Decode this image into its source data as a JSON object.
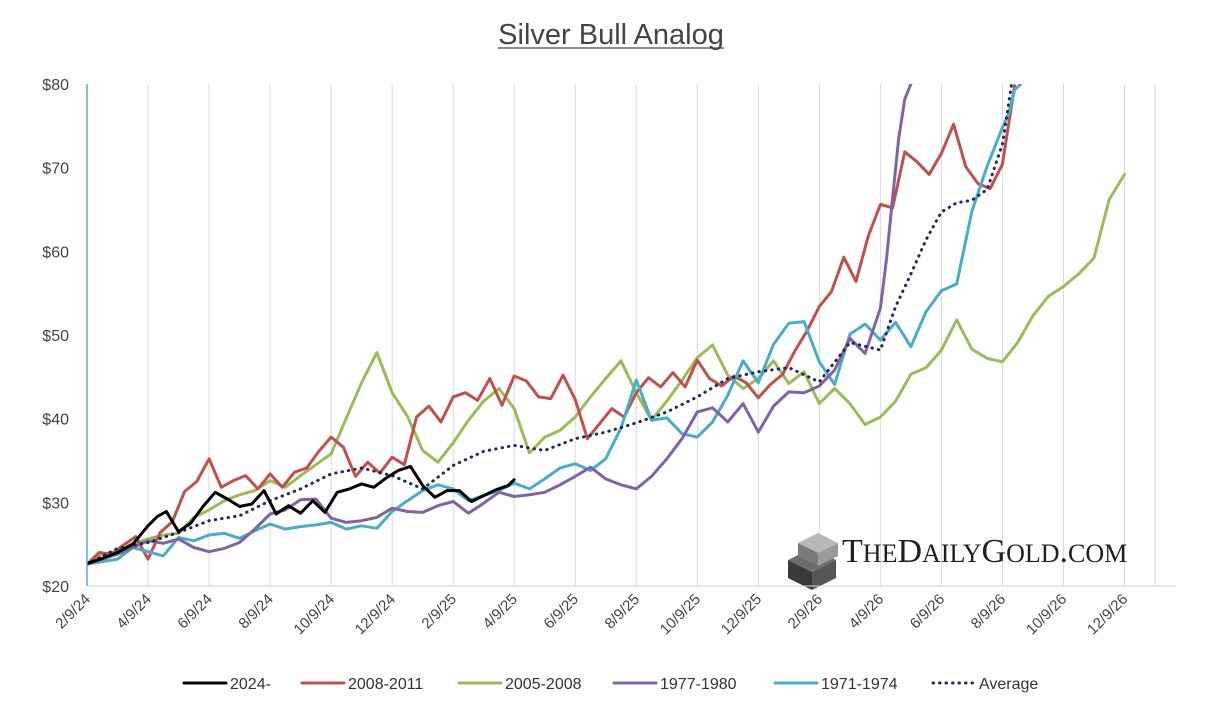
{
  "chart_data": {
    "type": "line",
    "title": "Silver Bull Analog",
    "xlabel": "",
    "ylabel": "",
    "y_ticks": [
      "$20",
      "$30",
      "$40",
      "$50",
      "$60",
      "$70",
      "$80"
    ],
    "y_tick_values": [
      20,
      30,
      40,
      50,
      60,
      70,
      80
    ],
    "ylim": [
      20,
      80
    ],
    "x_tick_labels": [
      "2/9/24",
      "4/9/24",
      "6/9/24",
      "8/9/24",
      "10/9/24",
      "12/9/24",
      "2/9/25",
      "4/9/25",
      "6/9/25",
      "8/9/25",
      "10/9/25",
      "12/9/25",
      "2/9/26",
      "4/9/26",
      "6/9/26",
      "8/9/26",
      "10/9/26",
      "12/9/26"
    ],
    "x_unit": "months since 2/9/24",
    "xlim": [
      0,
      35
    ],
    "grid": "vertical",
    "legend_position": "bottom",
    "watermark": "THEDAILYGOLD.COM",
    "series": [
      {
        "name": "2024-",
        "color": "#000000",
        "style": "solid",
        "x": [
          0,
          0.5,
          1,
          1.5,
          2,
          2.3,
          2.6,
          3,
          3.4,
          3.8,
          4.2,
          4.6,
          5,
          5.4,
          5.8,
          6.2,
          6.6,
          7,
          7.4,
          7.8,
          8.2,
          8.6,
          9,
          9.4,
          9.8,
          10.2,
          10.6,
          11,
          11.4,
          11.8,
          12.2,
          12.6,
          13,
          13.4,
          13.8,
          14
        ],
        "y": [
          22.7,
          23.3,
          24,
          25,
          27.2,
          28.3,
          28.9,
          26.5,
          27.5,
          29.5,
          31.2,
          30.4,
          29.5,
          29.8,
          31.4,
          28.6,
          29.6,
          28.7,
          30.2,
          28.8,
          31.2,
          31.6,
          32.2,
          31.8,
          32.9,
          33.8,
          34.3,
          32,
          30.6,
          31.4,
          31.4,
          30.1,
          30.8,
          31.5,
          32,
          32.7
        ]
      },
      {
        "name": "2008-2011",
        "color": "#c0504d",
        "style": "solid",
        "x": [
          0,
          0.4,
          0.8,
          1.2,
          1.6,
          2,
          2.4,
          2.8,
          3.2,
          3.6,
          4,
          4.4,
          4.8,
          5.2,
          5.6,
          6,
          6.4,
          6.8,
          7.2,
          7.6,
          8,
          8.4,
          8.8,
          9.2,
          9.6,
          10,
          10.4,
          10.8,
          11.2,
          11.6,
          12,
          12.4,
          12.8,
          13.2,
          13.6,
          14,
          14.4,
          14.8,
          15.2,
          15.6,
          16,
          16.4,
          16.8,
          17.2,
          17.6,
          18,
          18.4,
          18.8,
          19.2,
          19.6,
          20,
          20.4,
          20.8,
          21.2,
          21.6,
          22,
          22.4,
          22.8,
          23.2,
          23.6,
          24,
          24.4,
          24.8,
          25.2,
          25.6,
          26,
          26.4,
          26.8,
          27.2,
          27.6,
          28,
          28.4,
          28.8,
          29.2,
          29.6,
          30,
          30.4
        ],
        "y": [
          22.6,
          24,
          23.8,
          24.9,
          25.9,
          23.2,
          26.4,
          27.7,
          31.3,
          32.5,
          35.2,
          31.8,
          32.6,
          33.2,
          31.6,
          33.4,
          31.8,
          33.6,
          34.1,
          36.1,
          37.8,
          36.6,
          33.1,
          34.8,
          33.5,
          35.4,
          34.5,
          40.2,
          41.5,
          39.6,
          42.6,
          43.1,
          42.2,
          44.8,
          41.6,
          45.1,
          44.5,
          42.6,
          42.4,
          45.2,
          42.3,
          37.6,
          39.4,
          41.2,
          40.2,
          43.1,
          44.9,
          43.8,
          45.5,
          43.8,
          47,
          44.8,
          43.9,
          45.1,
          44.3,
          42.5,
          44.1,
          45.3,
          48.1,
          50.5,
          53.4,
          55.2,
          59.3,
          56.4,
          61.8,
          65.6,
          65.2,
          71.9,
          70.7,
          69.2,
          71.7,
          75.2,
          70.1,
          68.1,
          67.5,
          70.4,
          79.8
        ]
      },
      {
        "name": "2005-2008",
        "color": "#9bbb59",
        "style": "solid",
        "x": [
          0,
          0.5,
          1,
          1.5,
          2,
          2.5,
          3,
          3.5,
          4,
          4.5,
          5,
          5.5,
          6,
          6.5,
          7,
          7.5,
          8,
          8.5,
          9,
          9.5,
          10,
          10.5,
          11,
          11.5,
          12,
          12.5,
          13,
          13.5,
          14,
          14.5,
          15,
          15.5,
          16,
          16.5,
          17,
          17.5,
          18,
          18.5,
          19,
          19.5,
          20,
          20.5,
          21,
          21.5,
          22,
          22.5,
          23,
          23.5,
          24,
          24.5,
          25,
          25.5,
          26,
          26.5,
          27,
          27.5,
          28,
          28.5,
          29,
          29.5,
          30,
          30.5,
          31,
          31.5,
          32,
          32.5,
          33,
          33.5,
          34
        ],
        "y": [
          22.6,
          23.8,
          24.1,
          25.1,
          25.6,
          26.1,
          26.3,
          28.2,
          29.1,
          30.2,
          30.9,
          31.4,
          32.6,
          31.8,
          33.2,
          34.5,
          35.8,
          40.1,
          44.3,
          47.9,
          43.1,
          40.3,
          36.2,
          34.8,
          37.1,
          39.8,
          42.1,
          43.6,
          41.2,
          35.9,
          37.8,
          38.6,
          40.2,
          42.6,
          44.8,
          46.9,
          43.1,
          39.8,
          42.1,
          44.6,
          47.3,
          48.8,
          45.2,
          43.6,
          44.8,
          46.9,
          44.2,
          45.6,
          41.8,
          43.6,
          41.8,
          39.3,
          40.2,
          42.1,
          45.3,
          46.1,
          48.2,
          51.8,
          48.3,
          47.2,
          46.8,
          49.1,
          52.3,
          54.6,
          55.8,
          57.3,
          59.2,
          66.2,
          69.2
        ]
      },
      {
        "name": "1977-1980",
        "color": "#8064a2",
        "style": "solid",
        "x": [
          0,
          0.5,
          1,
          1.5,
          2,
          2.5,
          3,
          3.5,
          4,
          4.5,
          5,
          5.5,
          6,
          6.5,
          7,
          7.5,
          8,
          8.5,
          9,
          9.5,
          10,
          10.5,
          11,
          11.5,
          12,
          12.5,
          13,
          13.5,
          14,
          14.5,
          15,
          15.5,
          16,
          16.5,
          17,
          17.5,
          18,
          18.5,
          19,
          19.5,
          20,
          20.5,
          21,
          21.5,
          22,
          22.5,
          23,
          23.5,
          24,
          24.5,
          25,
          25.5,
          26,
          26.2,
          26.4,
          26.6,
          26.8,
          27
        ],
        "y": [
          22.6,
          23.2,
          23.8,
          24.6,
          25.4,
          25.1,
          25.6,
          24.6,
          24.1,
          24.5,
          25.2,
          26.8,
          28.6,
          29.1,
          30.3,
          30.4,
          28.1,
          27.6,
          27.8,
          28.2,
          29.3,
          28.9,
          28.8,
          29.6,
          30.1,
          28.7,
          29.9,
          31.2,
          30.7,
          30.9,
          31.2,
          32.1,
          33.1,
          34.2,
          32.8,
          32.1,
          31.6,
          33.1,
          35.2,
          37.6,
          40.8,
          41.3,
          39.6,
          41.8,
          38.4,
          41.5,
          43.2,
          43.1,
          43.9,
          45.8,
          49.6,
          47.8,
          53.2,
          59.1,
          66.4,
          73.5,
          78.2,
          80
        ]
      },
      {
        "name": "1971-1974",
        "color": "#4bacc6",
        "style": "solid",
        "x": [
          0,
          0.5,
          1,
          1.5,
          2,
          2.5,
          3,
          3.5,
          4,
          4.5,
          5,
          5.5,
          6,
          6.5,
          7,
          7.5,
          8,
          8.5,
          9,
          9.5,
          10,
          10.5,
          11,
          11.5,
          12,
          12.5,
          13,
          13.5,
          14,
          14.5,
          15,
          15.5,
          16,
          16.5,
          17,
          17.5,
          18,
          18.5,
          19,
          19.5,
          20,
          20.5,
          21,
          21.5,
          22,
          22.5,
          23,
          23.5,
          24,
          24.5,
          25,
          25.5,
          26,
          26.5,
          27,
          27.5,
          28,
          28.5,
          29,
          29.5,
          30,
          30.2,
          30.4,
          30.6
        ],
        "y": [
          22.6,
          22.9,
          23.2,
          24.6,
          24.1,
          23.6,
          25.8,
          25.4,
          26.1,
          26.3,
          25.7,
          26.6,
          27.4,
          26.8,
          27.1,
          27.3,
          27.6,
          26.8,
          27.2,
          26.9,
          28.9,
          30.2,
          31.4,
          32.1,
          31.6,
          30.2,
          30.8,
          31.4,
          32.3,
          31.6,
          32.8,
          34.1,
          34.6,
          33.8,
          35.2,
          38.9,
          44.6,
          39.8,
          40.1,
          38.2,
          37.8,
          39.6,
          42.8,
          46.9,
          44.3,
          48.9,
          51.4,
          51.6,
          46.8,
          44.1,
          50.1,
          51.3,
          49.4,
          51.5,
          48.6,
          52.8,
          55.3,
          56.1,
          64.8,
          70.2,
          74.8,
          76.4,
          79.3,
          80
        ]
      },
      {
        "name": "Average",
        "color": "#1f2a5c",
        "style": "dotted",
        "x": [
          0,
          1,
          2,
          3,
          4,
          5,
          6,
          7,
          8,
          9,
          10,
          11,
          12,
          13,
          14,
          15,
          16,
          17,
          18,
          19,
          20,
          21,
          22,
          23,
          24,
          25,
          26,
          26.5,
          27,
          27.5,
          28,
          28.5,
          29,
          29.5,
          30,
          30.3
        ],
        "y": [
          22.6,
          24.5,
          25.2,
          26.4,
          27.8,
          28.4,
          30.2,
          31.6,
          33.4,
          34.1,
          33.2,
          31.6,
          34.4,
          36.1,
          36.8,
          36.2,
          37.6,
          38.4,
          39.5,
          40.8,
          42.6,
          44.8,
          45.6,
          46.1,
          44.4,
          49.1,
          48.2,
          53.4,
          57.3,
          61.4,
          64.7,
          65.8,
          66.1,
          67.4,
          72.8,
          80
        ]
      }
    ]
  }
}
